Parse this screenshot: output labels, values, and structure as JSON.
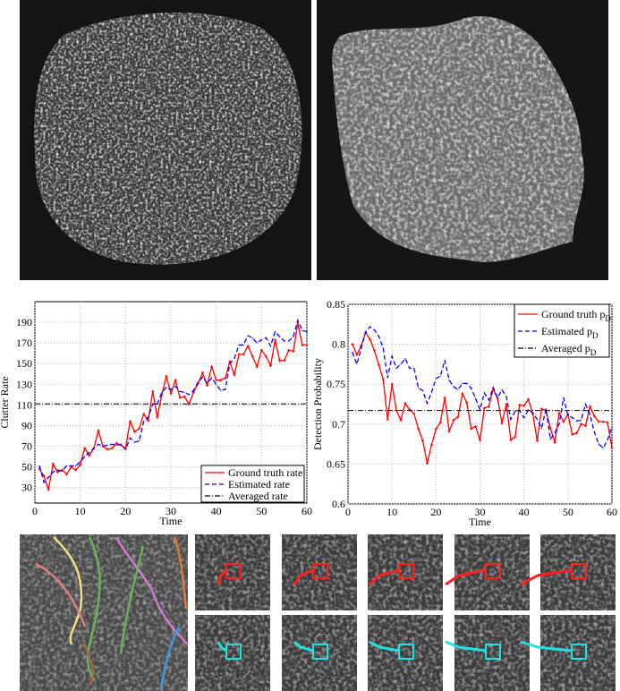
{
  "colors": {
    "ground_truth": "#ff0000",
    "estimated": "#0000ff",
    "averaged": "#000000",
    "box_red": "#ff2020",
    "box_cyan": "#20e0e0"
  },
  "images": {
    "top_left": {
      "icon": "microscopy-cell-image-dim"
    },
    "top_right": {
      "icon": "microscopy-cell-image-bright"
    },
    "bottom_tracks": {
      "icon": "microscopy-tracks-overlay"
    },
    "tile_rows": [
      {
        "box_color": "red",
        "tiles": 5
      },
      {
        "box_color": "cyan",
        "tiles": 5
      }
    ]
  },
  "chart_data": [
    {
      "type": "line",
      "xlabel": "Time",
      "ylabel": "Clutter Rate",
      "xlim": [
        0,
        60
      ],
      "ylim": [
        15,
        210
      ],
      "xticks": [
        "0",
        "10",
        "20",
        "30",
        "40",
        "50",
        "60"
      ],
      "yticks": [
        "30",
        "50",
        "70",
        "90",
        "110",
        "130",
        "150",
        "170",
        "190"
      ],
      "grid": true,
      "legend_position": "bottom-right",
      "x": [
        1,
        2,
        3,
        4,
        5,
        6,
        7,
        8,
        9,
        10,
        11,
        12,
        13,
        14,
        15,
        16,
        17,
        18,
        19,
        20,
        21,
        22,
        23,
        24,
        25,
        26,
        27,
        28,
        29,
        30,
        31,
        32,
        33,
        34,
        35,
        36,
        37,
        38,
        39,
        40,
        41,
        42,
        43,
        44,
        45,
        46,
        47,
        48,
        49,
        50,
        51,
        52,
        53,
        54,
        55,
        56,
        57,
        58,
        59,
        60
      ],
      "series": [
        {
          "name": "Ground truth rate",
          "style": "solid-plus",
          "values": [
            48,
            41,
            28,
            53,
            45,
            47,
            43,
            50,
            47,
            52,
            68,
            61,
            68,
            85,
            70,
            67,
            68,
            73,
            71,
            68,
            94,
            84,
            87,
            101,
            95,
            123,
            98,
            120,
            138,
            121,
            134,
            117,
            118,
            111,
            122,
            131,
            141,
            129,
            147,
            134,
            134,
            136,
            152,
            139,
            159,
            159,
            167,
            157,
            147,
            163,
            157,
            148,
            173,
            153,
            153,
            163,
            162,
            189,
            168,
            168
          ]
        },
        {
          "name": "Estimated rate",
          "style": "dashed",
          "values": [
            51,
            35,
            40,
            45,
            47,
            46,
            51,
            51,
            51,
            55,
            60,
            64,
            68,
            72,
            70,
            71,
            72,
            71,
            72,
            67,
            78,
            74,
            75,
            94,
            98,
            111,
            111,
            122,
            127,
            125,
            128,
            123,
            122,
            120,
            124,
            132,
            137,
            131,
            136,
            130,
            124,
            125,
            150,
            155,
            168,
            168,
            177,
            175,
            170,
            173,
            175,
            167,
            181,
            176,
            172,
            172,
            176,
            192,
            182,
            181
          ]
        },
        {
          "name": "Averaged rate",
          "style": "dashdot",
          "constant": 111
        }
      ]
    },
    {
      "type": "line",
      "xlabel": "Time",
      "ylabel": "Detection Probability",
      "xlim": [
        0,
        60
      ],
      "ylim": [
        0.6,
        0.85
      ],
      "xticks": [
        "0",
        "10",
        "20",
        "30",
        "40",
        "50",
        "60"
      ],
      "yticks": [
        "0.6",
        "0.65",
        "0.7",
        "0.75",
        "0.8",
        "0.85"
      ],
      "grid": true,
      "legend_position": "top-right",
      "x": [
        1,
        2,
        3,
        4,
        5,
        6,
        7,
        8,
        9,
        10,
        11,
        12,
        13,
        14,
        15,
        16,
        17,
        18,
        19,
        20,
        21,
        22,
        23,
        24,
        25,
        26,
        27,
        28,
        29,
        30,
        31,
        32,
        33,
        34,
        35,
        36,
        37,
        38,
        39,
        40,
        41,
        42,
        43,
        44,
        45,
        46,
        47,
        48,
        49,
        50,
        51,
        52,
        53,
        54,
        55,
        56,
        57,
        58,
        59,
        60
      ],
      "series": [
        {
          "name": "Ground truth p",
          "name_sub": "D",
          "style": "solid-plus",
          "values": [
            0.8,
            0.787,
            0.798,
            0.815,
            0.806,
            0.792,
            0.774,
            0.756,
            0.706,
            0.75,
            0.717,
            0.705,
            0.726,
            0.718,
            0.713,
            0.694,
            0.679,
            0.651,
            0.674,
            0.694,
            0.702,
            0.733,
            0.691,
            0.705,
            0.709,
            0.738,
            0.727,
            0.694,
            0.697,
            0.68,
            0.72,
            0.722,
            0.744,
            0.732,
            0.701,
            0.725,
            0.68,
            0.684,
            0.724,
            0.723,
            0.731,
            0.713,
            0.679,
            0.719,
            0.717,
            0.695,
            0.677,
            0.714,
            0.703,
            0.712,
            0.687,
            0.689,
            0.7,
            0.698,
            0.722,
            0.71,
            0.703,
            0.703,
            0.702,
            0.67
          ]
        },
        {
          "name": "Estimated p",
          "name_sub": "D",
          "style": "dashed",
          "values": [
            0.79,
            0.775,
            0.795,
            0.815,
            0.822,
            0.818,
            0.81,
            0.795,
            0.758,
            0.785,
            0.77,
            0.775,
            0.782,
            0.77,
            0.77,
            0.745,
            0.742,
            0.726,
            0.74,
            0.757,
            0.76,
            0.78,
            0.755,
            0.747,
            0.743,
            0.751,
            0.751,
            0.745,
            0.732,
            0.718,
            0.739,
            0.73,
            0.746,
            0.733,
            0.743,
            0.734,
            0.706,
            0.716,
            0.717,
            0.708,
            0.718,
            0.714,
            0.706,
            0.695,
            0.719,
            0.681,
            0.689,
            0.7,
            0.733,
            0.711,
            0.708,
            0.704,
            0.705,
            0.725,
            0.712,
            0.69,
            0.675,
            0.67,
            0.68,
            0.697
          ]
        },
        {
          "name": "Averaged p",
          "name_sub": "D",
          "style": "dashdot",
          "constant": 0.717
        }
      ]
    }
  ]
}
